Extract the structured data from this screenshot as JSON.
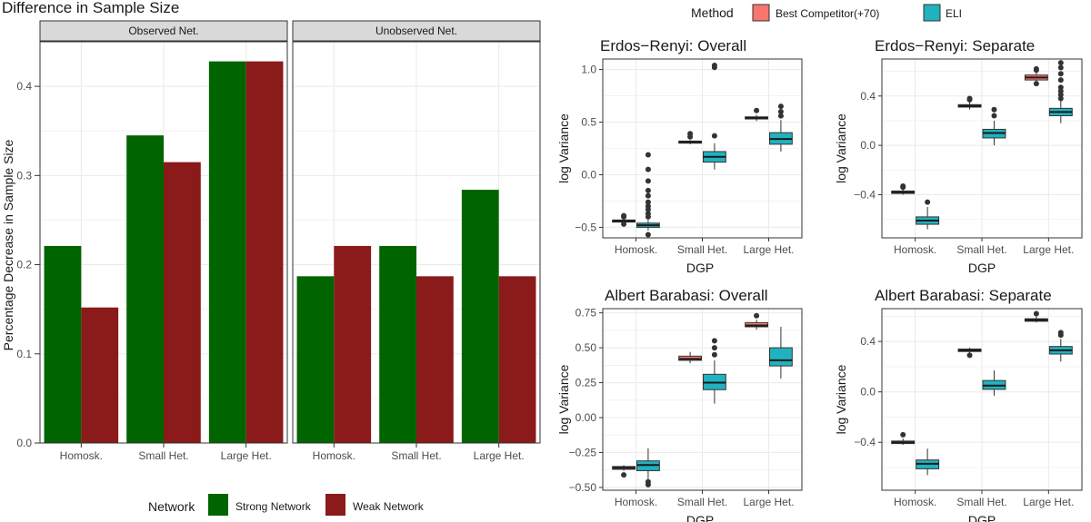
{
  "colors": {
    "strong": "#006400",
    "weak": "#8B1A1A",
    "competitor": "#F8766D",
    "eli": "#20B2BF",
    "grid": "#EBEBEB",
    "strip_bg": "#D9D9D9"
  },
  "chart_data": [
    {
      "id": "bar",
      "type": "bar",
      "title": "Difference in Sample Size",
      "ylabel": "Percentage Decrease in Sample Size",
      "ylim": [
        0,
        0.45
      ],
      "yticks": [
        0.0,
        0.1,
        0.2,
        0.3,
        0.4
      ],
      "ytick_labels": [
        "0.0",
        "0.1",
        "0.2",
        "0.3",
        "0.4"
      ],
      "categories": [
        "Homosk.",
        "Small Het.",
        "Large Het."
      ],
      "legend_title": "Network",
      "legend_position": "bottom",
      "facets": [
        {
          "label": "Observed Net.",
          "series": [
            {
              "name": "Strong Network",
              "values": [
                0.221,
                0.345,
                0.428
              ]
            },
            {
              "name": "Weak Network",
              "values": [
                0.152,
                0.315,
                0.428
              ]
            }
          ]
        },
        {
          "label": "Unobserved Net.",
          "series": [
            {
              "name": "Strong Network",
              "values": [
                0.187,
                0.221,
                0.284
              ]
            },
            {
              "name": "Weak Network",
              "values": [
                0.221,
                0.187,
                0.187
              ]
            }
          ]
        }
      ]
    },
    {
      "id": "box",
      "type": "boxplot",
      "legend_title": "Method",
      "legend_position": "top",
      "series_names": [
        "Best Competitor(+70)",
        "ELI"
      ],
      "categories": [
        "Homosk.",
        "Small Het.",
        "Large Het."
      ],
      "panels": [
        {
          "title": "Erdos−Renyi: Overall",
          "xlabel": "DGP",
          "ylabel": "log Variance",
          "ylim": [
            -0.6,
            1.1
          ],
          "yticks": [
            -0.5,
            0.0,
            0.5,
            1.0
          ],
          "ytick_labels": [
            "−0.5",
            "0.0",
            "0.5",
            "1.0"
          ],
          "groups": [
            [
              {
                "min": -0.46,
                "q1": -0.45,
                "median": -0.44,
                "q3": -0.43,
                "max": -0.42,
                "outliers": [
                  -0.4,
                  -0.39,
                  -0.47
                ]
              },
              {
                "min": -0.53,
                "q1": -0.5,
                "median": -0.48,
                "q3": -0.46,
                "max": -0.43,
                "outliers": [
                  -0.4,
                  -0.37,
                  -0.33,
                  -0.3,
                  -0.26,
                  -0.2,
                  -0.15,
                  -0.06,
                  0.05,
                  0.19,
                  -0.57
                ]
              }
            ],
            [
              {
                "min": 0.29,
                "q1": 0.3,
                "median": 0.31,
                "q3": 0.32,
                "max": 0.33,
                "outliers": [
                  0.36,
                  0.39
                ]
              },
              {
                "min": 0.05,
                "q1": 0.12,
                "median": 0.17,
                "q3": 0.22,
                "max": 0.3,
                "outliers": [
                  0.37,
                  1.02,
                  1.04
                ]
              }
            ],
            [
              {
                "min": 0.51,
                "q1": 0.53,
                "median": 0.54,
                "q3": 0.55,
                "max": 0.57,
                "outliers": [
                  0.61
                ]
              },
              {
                "min": 0.22,
                "q1": 0.29,
                "median": 0.34,
                "q3": 0.4,
                "max": 0.52,
                "outliers": [
                  0.56,
                  0.6,
                  0.65
                ]
              }
            ]
          ]
        },
        {
          "title": "Erdos−Renyi: Separate",
          "xlabel": "DGP",
          "ylabel": "log Variance",
          "ylim": [
            -0.75,
            0.7
          ],
          "yticks": [
            -0.4,
            0.0,
            0.4
          ],
          "ytick_labels": [
            "−0.4",
            "0.0",
            "0.4"
          ],
          "groups": [
            [
              {
                "min": -0.4,
                "q1": -0.39,
                "median": -0.38,
                "q3": -0.37,
                "max": -0.36,
                "outliers": [
                  -0.34,
                  -0.33
                ]
              },
              {
                "min": -0.68,
                "q1": -0.64,
                "median": -0.61,
                "q3": -0.58,
                "max": -0.5,
                "outliers": [
                  -0.46
                ]
              }
            ],
            [
              {
                "min": 0.29,
                "q1": 0.31,
                "median": 0.32,
                "q3": 0.33,
                "max": 0.35,
                "outliers": [
                  0.37,
                  0.38
                ]
              },
              {
                "min": 0.0,
                "q1": 0.06,
                "median": 0.1,
                "q3": 0.13,
                "max": 0.2,
                "outliers": [
                  0.24,
                  0.29
                ]
              }
            ],
            [
              {
                "min": 0.51,
                "q1": 0.53,
                "median": 0.55,
                "q3": 0.57,
                "max": 0.59,
                "outliers": [
                  0.61,
                  0.62,
                  0.5
                ]
              },
              {
                "min": 0.18,
                "q1": 0.24,
                "median": 0.27,
                "q3": 0.3,
                "max": 0.36,
                "outliers": [
                  0.38,
                  0.41,
                  0.44,
                  0.47,
                  0.53,
                  0.58,
                  0.63,
                  0.67
                ]
              }
            ]
          ]
        },
        {
          "title": "Albert Barabasi: Overall",
          "xlabel": "DGP",
          "ylabel": "log Variance",
          "ylim": [
            -0.52,
            0.78
          ],
          "yticks": [
            -0.5,
            -0.25,
            0.0,
            0.25,
            0.5,
            0.75
          ],
          "ytick_labels": [
            "−0.50",
            "−0.25",
            "0.00",
            "0.25",
            "0.50",
            "0.75"
          ],
          "groups": [
            [
              {
                "min": -0.38,
                "q1": -0.37,
                "median": -0.36,
                "q3": -0.35,
                "max": -0.34,
                "outliers": [
                  -0.41
                ]
              },
              {
                "min": -0.44,
                "q1": -0.38,
                "median": -0.34,
                "q3": -0.31,
                "max": -0.22,
                "outliers": [
                  -0.46,
                  -0.48
                ]
              }
            ],
            [
              {
                "min": 0.39,
                "q1": 0.41,
                "median": 0.42,
                "q3": 0.44,
                "max": 0.47,
                "outliers": []
              },
              {
                "min": 0.1,
                "q1": 0.2,
                "median": 0.25,
                "q3": 0.31,
                "max": 0.41,
                "outliers": [
                  0.45,
                  0.5,
                  0.55
                ]
              }
            ],
            [
              {
                "min": 0.63,
                "q1": 0.65,
                "median": 0.66,
                "q3": 0.68,
                "max": 0.7,
                "outliers": [
                  0.73
                ]
              },
              {
                "min": 0.28,
                "q1": 0.37,
                "median": 0.41,
                "q3": 0.5,
                "max": 0.65,
                "outliers": []
              }
            ]
          ]
        },
        {
          "title": "Albert Barabasi: Separate",
          "xlabel": "DGP",
          "ylabel": "log Variance",
          "ylim": [
            -0.78,
            0.66
          ],
          "yticks": [
            -0.4,
            0.0,
            0.4
          ],
          "ytick_labels": [
            "−0.4",
            "0.0",
            "0.4"
          ],
          "groups": [
            [
              {
                "min": -0.42,
                "q1": -0.41,
                "median": -0.4,
                "q3": -0.39,
                "max": -0.37,
                "outliers": [
                  -0.34
                ]
              },
              {
                "min": -0.66,
                "q1": -0.61,
                "median": -0.57,
                "q3": -0.54,
                "max": -0.45,
                "outliers": []
              }
            ],
            [
              {
                "min": 0.31,
                "q1": 0.32,
                "median": 0.33,
                "q3": 0.34,
                "max": 0.35,
                "outliers": [
                  0.29
                ]
              },
              {
                "min": -0.03,
                "q1": 0.02,
                "median": 0.05,
                "q3": 0.09,
                "max": 0.17,
                "outliers": []
              }
            ],
            [
              {
                "min": 0.55,
                "q1": 0.56,
                "median": 0.57,
                "q3": 0.58,
                "max": 0.6,
                "outliers": [
                  0.62
                ]
              },
              {
                "min": 0.24,
                "q1": 0.3,
                "median": 0.33,
                "q3": 0.36,
                "max": 0.42,
                "outliers": [
                  0.45,
                  0.47
                ]
              }
            ]
          ]
        }
      ]
    }
  ]
}
